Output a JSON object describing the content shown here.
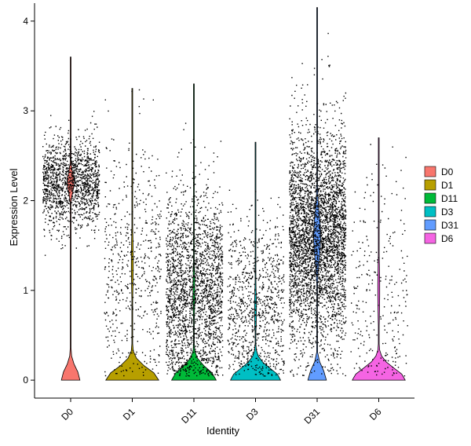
{
  "chart_data": {
    "type": "violin",
    "title": "",
    "xlabel": "Identity",
    "ylabel": "Expression Level",
    "ylim": [
      -0.2,
      4.2
    ],
    "yticks": [
      0,
      1,
      2,
      3,
      4
    ],
    "grid": false,
    "legend_position": "right",
    "categories": [
      "D0",
      "D1",
      "D11",
      "D3",
      "D31",
      "D6"
    ],
    "series": [
      {
        "name": "D0",
        "color": "#F8766D",
        "max": 3.6,
        "point_count": 1600,
        "zero_fraction": 0.25,
        "bulk_center": 2.2,
        "spread": 0.25
      },
      {
        "name": "D1",
        "color": "#B79F00",
        "max": 3.25,
        "point_count": 700,
        "zero_fraction": 0.6,
        "bulk_center": 1.3,
        "spread": 0.7
      },
      {
        "name": "D11",
        "color": "#00BA38",
        "max": 3.3,
        "point_count": 2600,
        "zero_fraction": 0.45,
        "bulk_center": 1.0,
        "spread": 0.55
      },
      {
        "name": "D3",
        "color": "#00BFC4",
        "max": 2.65,
        "point_count": 1100,
        "zero_fraction": 0.55,
        "bulk_center": 0.8,
        "spread": 0.5
      },
      {
        "name": "D31",
        "color": "#619CFF",
        "max": 4.15,
        "point_count": 4000,
        "zero_fraction": 0.25,
        "bulk_center": 1.6,
        "spread": 0.6
      },
      {
        "name": "D6",
        "color": "#F564E3",
        "max": 2.7,
        "point_count": 350,
        "zero_fraction": 0.6,
        "bulk_center": 1.0,
        "spread": 0.7
      }
    ]
  }
}
